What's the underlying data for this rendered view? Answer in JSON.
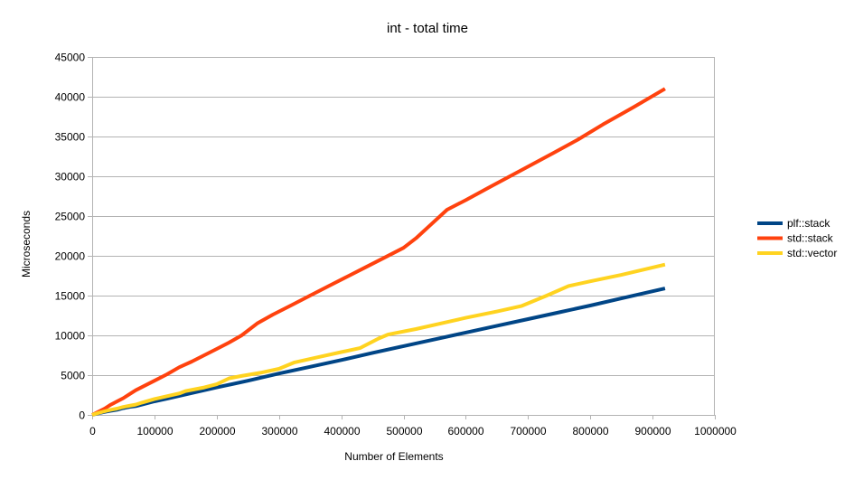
{
  "chart_data": {
    "type": "line",
    "title": "int - total time",
    "xlabel": "Number of Elements",
    "ylabel": "Microseconds",
    "xlim": [
      0,
      1000000
    ],
    "ylim": [
      0,
      45000
    ],
    "x_ticks": [
      0,
      100000,
      200000,
      300000,
      400000,
      500000,
      600000,
      700000,
      800000,
      900000,
      1000000
    ],
    "y_ticks": [
      0,
      5000,
      10000,
      15000,
      20000,
      25000,
      30000,
      35000,
      40000,
      45000
    ],
    "grid": "horizontal",
    "legend_position": "right",
    "series": [
      {
        "name": "plf::stack",
        "color": "#004586",
        "points": [
          [
            0,
            0
          ],
          [
            10000,
            200
          ],
          [
            20000,
            380
          ],
          [
            30000,
            520
          ],
          [
            40000,
            650
          ],
          [
            50000,
            850
          ],
          [
            60000,
            1000
          ],
          [
            70000,
            1100
          ],
          [
            80000,
            1300
          ],
          [
            100000,
            1700
          ],
          [
            120000,
            2050
          ],
          [
            140000,
            2400
          ],
          [
            160000,
            2750
          ],
          [
            180000,
            3100
          ],
          [
            200000,
            3450
          ],
          [
            250000,
            4300
          ],
          [
            300000,
            5200
          ],
          [
            350000,
            6050
          ],
          [
            400000,
            6900
          ],
          [
            450000,
            7800
          ],
          [
            500000,
            8650
          ],
          [
            550000,
            9500
          ],
          [
            600000,
            10350
          ],
          [
            650000,
            11200
          ],
          [
            700000,
            12050
          ],
          [
            750000,
            12900
          ],
          [
            800000,
            13750
          ],
          [
            850000,
            14650
          ],
          [
            920000,
            15900
          ]
        ]
      },
      {
        "name": "std::stack",
        "color": "#ff420e",
        "points": [
          [
            0,
            0
          ],
          [
            10000,
            400
          ],
          [
            20000,
            800
          ],
          [
            30000,
            1300
          ],
          [
            40000,
            1700
          ],
          [
            50000,
            2100
          ],
          [
            60000,
            2600
          ],
          [
            70000,
            3100
          ],
          [
            80000,
            3500
          ],
          [
            100000,
            4300
          ],
          [
            120000,
            5100
          ],
          [
            140000,
            6000
          ],
          [
            160000,
            6700
          ],
          [
            180000,
            7500
          ],
          [
            200000,
            8300
          ],
          [
            220000,
            9100
          ],
          [
            240000,
            10000
          ],
          [
            265000,
            11500
          ],
          [
            290000,
            12600
          ],
          [
            320000,
            13800
          ],
          [
            350000,
            15000
          ],
          [
            380000,
            16200
          ],
          [
            410000,
            17400
          ],
          [
            440000,
            18600
          ],
          [
            470000,
            19800
          ],
          [
            500000,
            21000
          ],
          [
            520000,
            22200
          ],
          [
            545000,
            24000
          ],
          [
            570000,
            25800
          ],
          [
            600000,
            27000
          ],
          [
            640000,
            28700
          ],
          [
            690000,
            30800
          ],
          [
            740000,
            32900
          ],
          [
            780000,
            34600
          ],
          [
            820000,
            36500
          ],
          [
            870000,
            38700
          ],
          [
            920000,
            41000
          ]
        ]
      },
      {
        "name": "std::vector",
        "color": "#ffd320",
        "points": [
          [
            0,
            0
          ],
          [
            10000,
            250
          ],
          [
            20000,
            450
          ],
          [
            30000,
            650
          ],
          [
            40000,
            800
          ],
          [
            50000,
            1000
          ],
          [
            60000,
            1150
          ],
          [
            70000,
            1300
          ],
          [
            80000,
            1550
          ],
          [
            100000,
            2000
          ],
          [
            120000,
            2350
          ],
          [
            140000,
            2700
          ],
          [
            150000,
            3000
          ],
          [
            180000,
            3450
          ],
          [
            200000,
            3850
          ],
          [
            220000,
            4600
          ],
          [
            240000,
            4900
          ],
          [
            270000,
            5300
          ],
          [
            300000,
            5800
          ],
          [
            325000,
            6600
          ],
          [
            360000,
            7200
          ],
          [
            400000,
            7900
          ],
          [
            430000,
            8400
          ],
          [
            460000,
            9600
          ],
          [
            475000,
            10100
          ],
          [
            520000,
            10800
          ],
          [
            560000,
            11500
          ],
          [
            600000,
            12200
          ],
          [
            650000,
            13000
          ],
          [
            690000,
            13700
          ],
          [
            730000,
            15000
          ],
          [
            765000,
            16200
          ],
          [
            800000,
            16800
          ],
          [
            850000,
            17600
          ],
          [
            920000,
            18900
          ]
        ]
      }
    ]
  }
}
